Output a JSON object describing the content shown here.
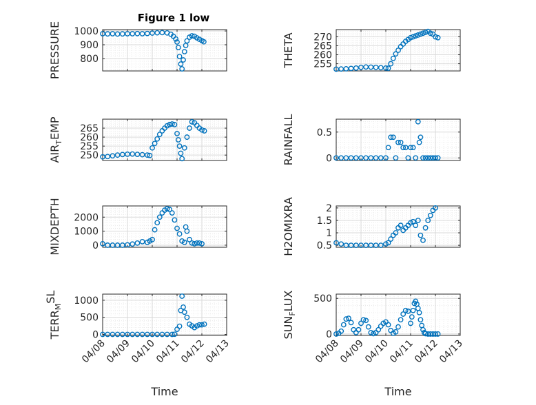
{
  "figure": {
    "title": "Figure 1 low"
  },
  "colors": {
    "marker": "#0072BD",
    "axes": "#262626",
    "grid": "#d9d9d9",
    "background": "#ffffff"
  },
  "chart_data": [
    {
      "type": "scatter",
      "title": "Figure 1 low",
      "ylabel": "PRESSURE",
      "ylabel_main": "PRESSURE",
      "ylabel_sub": "",
      "ylabel_tail": "",
      "ylabel_sup": false,
      "xlabel": "",
      "xlim": [
        "04/08",
        "04/13"
      ],
      "ylim": [
        710,
        1010
      ],
      "yticks": [
        800,
        900,
        1000
      ],
      "xticks": [
        "04/08",
        "04/09",
        "04/10",
        "04/11",
        "04/12",
        "04/13"
      ],
      "show_xticklabels": false,
      "grid": true,
      "marker": "circle",
      "series": [
        {
          "x": [
            0.0,
            0.2,
            0.4,
            0.6,
            0.8,
            1.0,
            1.2,
            1.4,
            1.6,
            1.8,
            2.0,
            2.2,
            2.4,
            2.6,
            2.75,
            2.85,
            2.95,
            3.0,
            3.05,
            3.1,
            3.15,
            3.2,
            3.25,
            3.3,
            3.35,
            3.4,
            3.5,
            3.6,
            3.7,
            3.8,
            3.9,
            4.0,
            4.08
          ],
          "y": [
            980,
            979,
            980,
            978,
            979,
            980,
            980,
            981,
            980,
            982,
            985,
            987,
            988,
            986,
            976,
            962,
            942,
            920,
            880,
            815,
            760,
            725,
            790,
            850,
            895,
            928,
            955,
            965,
            962,
            950,
            940,
            930,
            922
          ]
        }
      ]
    },
    {
      "type": "scatter",
      "title": "",
      "ylabel": "THETA",
      "ylabel_main": "THETA",
      "ylabel_sub": "",
      "ylabel_tail": "",
      "ylabel_sup": false,
      "xlabel": "",
      "xlim": [
        "04/08",
        "04/13"
      ],
      "ylim": [
        251,
        274
      ],
      "yticks": [
        255,
        260,
        265,
        270
      ],
      "xticks": [
        "04/08",
        "04/09",
        "04/10",
        "04/11",
        "04/12",
        "04/13"
      ],
      "show_xticklabels": false,
      "grid": true,
      "marker": "circle",
      "series": [
        {
          "x": [
            0.0,
            0.2,
            0.4,
            0.6,
            0.8,
            1.0,
            1.2,
            1.4,
            1.6,
            1.8,
            2.0,
            2.1,
            2.2,
            2.3,
            2.4,
            2.5,
            2.6,
            2.7,
            2.8,
            2.9,
            3.0,
            3.1,
            3.2,
            3.3,
            3.4,
            3.5,
            3.6,
            3.7,
            3.8,
            3.9,
            4.0,
            4.1
          ],
          "y": [
            252.0,
            252.1,
            252.2,
            252.4,
            252.6,
            253.0,
            253.2,
            253.1,
            253.0,
            252.8,
            252.6,
            252.5,
            255.0,
            258.0,
            260.5,
            262.5,
            264.5,
            266.0,
            267.5,
            268.5,
            269.5,
            270.0,
            270.5,
            271.0,
            271.5,
            272.0,
            272.5,
            273.0,
            272.0,
            271.5,
            270.0,
            269.5
          ]
        }
      ]
    },
    {
      "type": "scatter",
      "title": "",
      "ylabel": "AIR_TEMP",
      "ylabel_main": "AIR",
      "ylabel_sub": "T",
      "ylabel_tail": "EMP",
      "ylabel_sup": false,
      "xlabel": "",
      "xlim": [
        "04/08",
        "04/13"
      ],
      "ylim": [
        247,
        270
      ],
      "yticks": [
        250,
        255,
        260,
        265
      ],
      "xticks": [
        "04/08",
        "04/09",
        "04/10",
        "04/11",
        "04/12",
        "04/13"
      ],
      "show_xticklabels": false,
      "grid": true,
      "marker": "circle",
      "series": [
        {
          "x": [
            0.0,
            0.2,
            0.4,
            0.6,
            0.8,
            1.0,
            1.2,
            1.4,
            1.6,
            1.8,
            1.9,
            2.0,
            2.1,
            2.2,
            2.3,
            2.4,
            2.5,
            2.6,
            2.7,
            2.8,
            2.9,
            3.0,
            3.05,
            3.1,
            3.15,
            3.2,
            3.3,
            3.4,
            3.5,
            3.6,
            3.7,
            3.8,
            3.9,
            4.0,
            4.1
          ],
          "y": [
            249.0,
            249.2,
            249.6,
            250.0,
            250.3,
            250.5,
            250.6,
            250.4,
            250.2,
            250.0,
            249.8,
            254.0,
            256.5,
            259.0,
            261.5,
            263.5,
            265.0,
            266.3,
            267.0,
            267.3,
            267.0,
            262.0,
            258.5,
            255.0,
            251.0,
            248.0,
            254.0,
            260.0,
            265.0,
            268.5,
            268.0,
            266.5,
            265.0,
            264.0,
            263.5
          ]
        }
      ]
    },
    {
      "type": "scatter",
      "title": "",
      "ylabel": "RAINFALL",
      "ylabel_main": "RAINFALL",
      "ylabel_sub": "",
      "ylabel_tail": "",
      "ylabel_sup": false,
      "xlabel": "",
      "xlim": [
        "04/08",
        "04/13"
      ],
      "ylim": [
        -0.05,
        0.75
      ],
      "yticks": [
        0,
        0.5
      ],
      "xticks": [
        "04/08",
        "04/09",
        "04/10",
        "04/11",
        "04/12",
        "04/13"
      ],
      "show_xticklabels": false,
      "grid": true,
      "marker": "circle",
      "series": [
        {
          "x": [
            0.0,
            0.2,
            0.4,
            0.6,
            0.8,
            1.0,
            1.2,
            1.4,
            1.6,
            1.8,
            2.0,
            2.1,
            2.2,
            2.3,
            2.4,
            2.5,
            2.6,
            2.7,
            2.8,
            2.9,
            3.0,
            3.1,
            3.2,
            3.3,
            3.35,
            3.4,
            3.5,
            3.6,
            3.7,
            3.8,
            3.9,
            4.0,
            4.1
          ],
          "y": [
            0,
            0,
            0,
            0,
            0,
            0,
            0,
            0,
            0,
            0,
            0,
            0.2,
            0.4,
            0.4,
            0,
            0.3,
            0.3,
            0.2,
            0.2,
            0,
            0.2,
            0.2,
            0,
            0.7,
            0.3,
            0.4,
            0,
            0,
            0,
            0,
            0,
            0,
            0
          ]
        }
      ]
    },
    {
      "type": "scatter",
      "title": "",
      "ylabel": "MIXDEPTH",
      "ylabel_main": "MIXDEPTH",
      "ylabel_sub": "",
      "ylabel_tail": "",
      "ylabel_sup": false,
      "xlabel": "",
      "xlim": [
        "04/08",
        "04/13"
      ],
      "ylim": [
        -150,
        2800
      ],
      "yticks": [
        0,
        1000,
        2000
      ],
      "xticks": [
        "04/08",
        "04/09",
        "04/10",
        "04/11",
        "04/12",
        "04/13"
      ],
      "show_xticklabels": false,
      "grid": true,
      "marker": "circle",
      "series": [
        {
          "x": [
            0.0,
            0.2,
            0.4,
            0.6,
            0.8,
            1.0,
            1.2,
            1.4,
            1.6,
            1.8,
            1.9,
            2.0,
            2.1,
            2.2,
            2.3,
            2.4,
            2.5,
            2.6,
            2.7,
            2.8,
            2.9,
            3.0,
            3.1,
            3.2,
            3.3,
            3.35,
            3.4,
            3.5,
            3.6,
            3.7,
            3.8,
            3.9,
            4.0
          ],
          "y": [
            100,
            0,
            0,
            0,
            0,
            20,
            80,
            150,
            250,
            200,
            300,
            400,
            1100,
            1600,
            2000,
            2300,
            2500,
            2600,
            2550,
            2300,
            1800,
            1200,
            800,
            300,
            200,
            1300,
            1000,
            400,
            150,
            100,
            150,
            150,
            100
          ]
        }
      ]
    },
    {
      "type": "scatter",
      "title": "",
      "ylabel": "H2OMIXRA",
      "ylabel_main": "H2OMIXRA",
      "ylabel_sub": "",
      "ylabel_tail": "",
      "ylabel_sup": false,
      "xlabel": "",
      "xlim": [
        "04/08",
        "04/13"
      ],
      "ylim": [
        0.42,
        2.08
      ],
      "yticks": [
        0.5,
        1,
        1.5,
        2
      ],
      "xticks": [
        "04/08",
        "04/09",
        "04/10",
        "04/11",
        "04/12",
        "04/13"
      ],
      "show_xticklabels": false,
      "grid": true,
      "marker": "circle",
      "series": [
        {
          "x": [
            0.0,
            0.2,
            0.4,
            0.6,
            0.8,
            1.0,
            1.2,
            1.4,
            1.6,
            1.8,
            2.0,
            2.1,
            2.2,
            2.3,
            2.4,
            2.5,
            2.6,
            2.7,
            2.8,
            2.9,
            3.0,
            3.1,
            3.2,
            3.3,
            3.4,
            3.5,
            3.6,
            3.7,
            3.8,
            3.9,
            4.0
          ],
          "y": [
            0.6,
            0.55,
            0.5,
            0.5,
            0.5,
            0.5,
            0.5,
            0.5,
            0.5,
            0.5,
            0.55,
            0.6,
            0.75,
            0.9,
            1.0,
            1.2,
            1.3,
            1.1,
            1.2,
            1.3,
            1.4,
            1.45,
            1.3,
            1.5,
            0.9,
            0.7,
            1.2,
            1.5,
            1.7,
            1.9,
            2.0
          ]
        }
      ]
    },
    {
      "type": "scatter",
      "title": "",
      "ylabel": "TERR_MSL",
      "ylabel_main": "TERR",
      "ylabel_sub": "M",
      "ylabel_tail": "SL",
      "ylabel_sup": true,
      "xlabel": "Time",
      "xlim": [
        "04/08",
        "04/13"
      ],
      "ylim": [
        -30,
        1180
      ],
      "yticks": [
        0,
        500,
        1000
      ],
      "xticks": [
        "04/08",
        "04/09",
        "04/10",
        "04/11",
        "04/12",
        "04/13"
      ],
      "show_xticklabels": true,
      "grid": true,
      "marker": "circle",
      "series": [
        {
          "x": [
            0.0,
            0.2,
            0.4,
            0.6,
            0.8,
            1.0,
            1.2,
            1.4,
            1.6,
            1.8,
            2.0,
            2.2,
            2.4,
            2.6,
            2.8,
            2.9,
            3.0,
            3.1,
            3.15,
            3.2,
            3.25,
            3.3,
            3.4,
            3.5,
            3.6,
            3.7,
            3.8,
            3.9,
            4.0,
            4.1
          ],
          "y": [
            0,
            0,
            0,
            0,
            0,
            0,
            0,
            0,
            0,
            0,
            0,
            0,
            0,
            0,
            0,
            5,
            150,
            240,
            700,
            1120,
            800,
            650,
            500,
            300,
            250,
            200,
            250,
            280,
            280,
            300
          ]
        }
      ]
    },
    {
      "type": "scatter",
      "title": "",
      "ylabel": "SUN_FLUX",
      "ylabel_main": "SUN",
      "ylabel_sub": "F",
      "ylabel_tail": "LUX",
      "ylabel_sup": false,
      "xlabel": "Time",
      "xlim": [
        "04/08",
        "04/13"
      ],
      "ylim": [
        -20,
        560
      ],
      "yticks": [
        0,
        500
      ],
      "xticks": [
        "04/08",
        "04/09",
        "04/10",
        "04/11",
        "04/12",
        "04/13"
      ],
      "show_xticklabels": true,
      "grid": true,
      "marker": "circle",
      "series": [
        {
          "x": [
            0.0,
            0.1,
            0.2,
            0.3,
            0.4,
            0.5,
            0.6,
            0.7,
            0.8,
            0.9,
            1.0,
            1.1,
            1.2,
            1.3,
            1.4,
            1.5,
            1.6,
            1.7,
            1.8,
            1.9,
            2.0,
            2.1,
            2.2,
            2.3,
            2.4,
            2.5,
            2.6,
            2.7,
            2.8,
            2.9,
            3.0,
            3.05,
            3.1,
            3.15,
            3.2,
            3.25,
            3.3,
            3.35,
            3.4,
            3.45,
            3.5,
            3.55,
            3.6,
            3.7,
            3.8,
            3.9,
            4.0,
            4.1
          ],
          "y": [
            0,
            10,
            40,
            130,
            210,
            220,
            160,
            60,
            20,
            60,
            150,
            200,
            190,
            100,
            20,
            5,
            20,
            60,
            110,
            150,
            170,
            130,
            50,
            10,
            30,
            100,
            200,
            280,
            330,
            320,
            150,
            240,
            330,
            430,
            460,
            420,
            360,
            300,
            200,
            120,
            60,
            20,
            5,
            0,
            0,
            0,
            0,
            0
          ]
        }
      ]
    }
  ]
}
